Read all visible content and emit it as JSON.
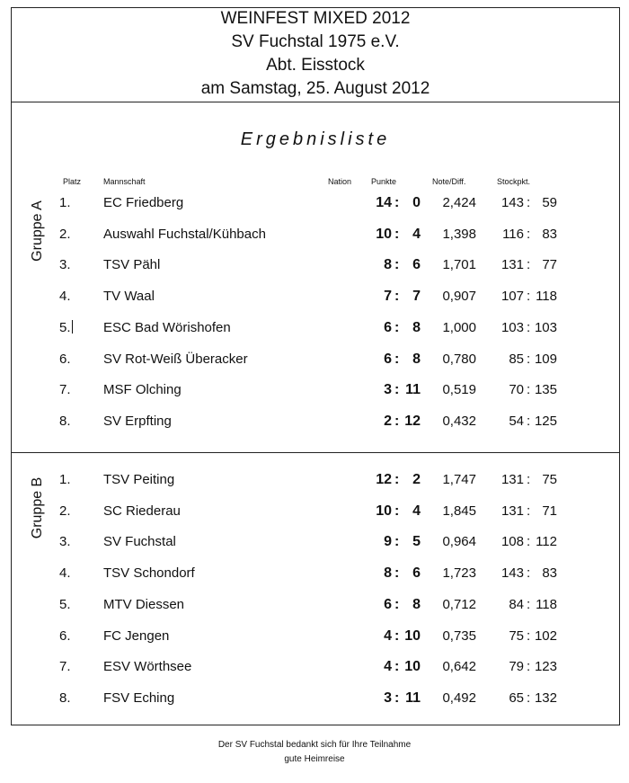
{
  "header": {
    "lines": [
      "WEINFEST MIXED 2012",
      "SV Fuchstal 1975 e.V.",
      "Abt. Eisstock",
      "am Samstag, 25. August 2012"
    ]
  },
  "subtitle": "Ergebnisliste",
  "columns": {
    "platz": "Platz",
    "mannschaft": "Mannschaft",
    "nation": "Nation",
    "punkte": "Punkte",
    "note": "Note/Diff.",
    "stock": "Stockpkt."
  },
  "groups": [
    {
      "label": "Gruppe A",
      "rows": [
        {
          "platz": "1.",
          "team": "EC Friedberg",
          "p1": "14",
          "p2": "0",
          "note": "2,424",
          "s1": "143",
          "s2": "59"
        },
        {
          "platz": "2.",
          "team": "Auswahl Fuchstal/Kühbach",
          "p1": "10",
          "p2": "4",
          "note": "1,398",
          "s1": "116",
          "s2": "83"
        },
        {
          "platz": "3.",
          "team": "TSV Pähl",
          "p1": "8",
          "p2": "6",
          "note": "1,701",
          "s1": "131",
          "s2": "77"
        },
        {
          "platz": "4.",
          "team": "TV Waal",
          "p1": "7",
          "p2": "7",
          "note": "0,907",
          "s1": "107",
          "s2": "118"
        },
        {
          "platz": "5.",
          "team": "ESC Bad Wörishofen",
          "p1": "6",
          "p2": "8",
          "note": "1,000",
          "s1": "103",
          "s2": "103"
        },
        {
          "platz": "6.",
          "team": "SV Rot-Weiß Überacker",
          "p1": "6",
          "p2": "8",
          "note": "0,780",
          "s1": "85",
          "s2": "109"
        },
        {
          "platz": "7.",
          "team": "MSF Olching",
          "p1": "3",
          "p2": "11",
          "note": "0,519",
          "s1": "70",
          "s2": "135"
        },
        {
          "platz": "8.",
          "team": "SV Erpfting",
          "p1": "2",
          "p2": "12",
          "note": "0,432",
          "s1": "54",
          "s2": "125"
        }
      ]
    },
    {
      "label": "Gruppe B",
      "rows": [
        {
          "platz": "1.",
          "team": "TSV Peiting",
          "p1": "12",
          "p2": "2",
          "note": "1,747",
          "s1": "131",
          "s2": "75"
        },
        {
          "platz": "2.",
          "team": "SC Riederau",
          "p1": "10",
          "p2": "4",
          "note": "1,845",
          "s1": "131",
          "s2": "71"
        },
        {
          "platz": "3.",
          "team": "SV Fuchstal",
          "p1": "9",
          "p2": "5",
          "note": "0,964",
          "s1": "108",
          "s2": "112"
        },
        {
          "platz": "4.",
          "team": "TSV Schondorf",
          "p1": "8",
          "p2": "6",
          "note": "1,723",
          "s1": "143",
          "s2": "83"
        },
        {
          "platz": "5.",
          "team": "MTV Diessen",
          "p1": "6",
          "p2": "8",
          "note": "0,712",
          "s1": "84",
          "s2": "118"
        },
        {
          "platz": "6.",
          "team": "FC Jengen",
          "p1": "4",
          "p2": "10",
          "note": "0,735",
          "s1": "75",
          "s2": "102"
        },
        {
          "platz": "7.",
          "team": "ESV Wörthsee",
          "p1": "4",
          "p2": "10",
          "note": "0,642",
          "s1": "79",
          "s2": "123"
        },
        {
          "platz": "8.",
          "team": "FSV Eching",
          "p1": "3",
          "p2": "11",
          "note": "0,492",
          "s1": "65",
          "s2": "132"
        }
      ]
    }
  ],
  "footer": {
    "line1": "Der SV Fuchstal bedankt sich für Ihre Teilnahme",
    "line2": "gute Heimreise"
  }
}
